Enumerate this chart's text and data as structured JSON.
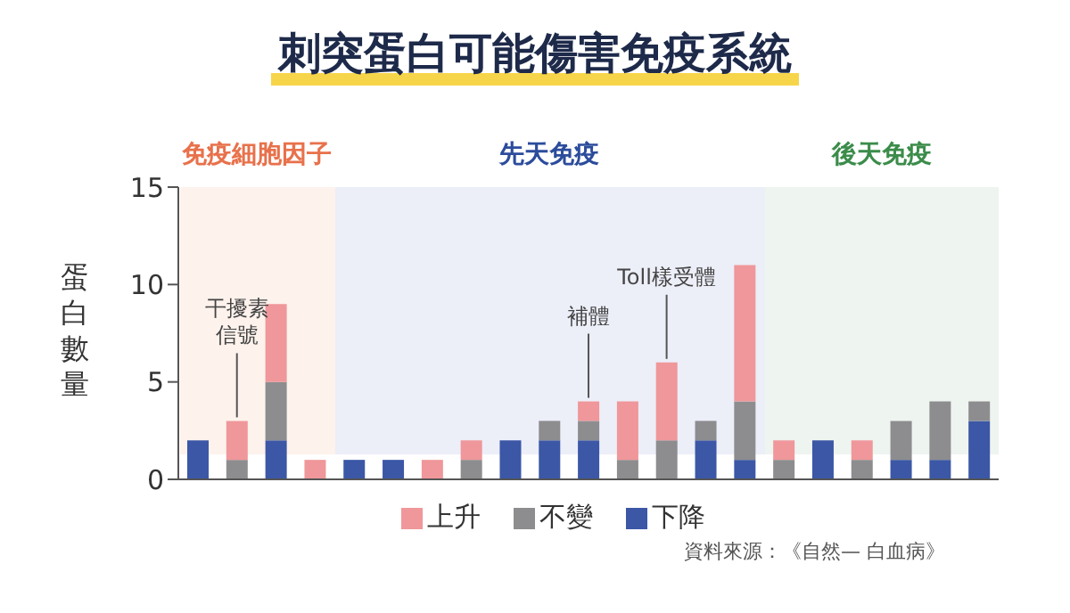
{
  "chart_data": {
    "type": "bar",
    "stacked": true,
    "title": "刺突蛋白可能傷害免疫系統",
    "ylabel": "蛋白數量",
    "categories": [
      null,
      null,
      null,
      null,
      null,
      null,
      null,
      null,
      null,
      null,
      null,
      null,
      null,
      null,
      null,
      null,
      null,
      null,
      null,
      null,
      null
    ],
    "series": [
      {
        "name": "下降",
        "color": "#3b57a6",
        "values": [
          2,
          0,
          2,
          0,
          1,
          1,
          0,
          0,
          2,
          2,
          2,
          0,
          0,
          2,
          1,
          0,
          2,
          0,
          1,
          1,
          3
        ]
      },
      {
        "name": "不變",
        "color": "#8d8d8f",
        "values": [
          0,
          1,
          3,
          0,
          0,
          0,
          0,
          1,
          0,
          1,
          1,
          1,
          2,
          1,
          3,
          1,
          0,
          1,
          2,
          3,
          1
        ]
      },
      {
        "name": "上升",
        "color": "#ef979a",
        "values": [
          0,
          2,
          4,
          1,
          0,
          0,
          1,
          1,
          0,
          0,
          1,
          3,
          4,
          0,
          7,
          1,
          0,
          1,
          0,
          0,
          0
        ]
      }
    ],
    "ylim": [
      0,
      15
    ],
    "yticks": [
      0,
      5,
      10,
      15
    ],
    "legend": "bottom",
    "annotations": [
      {
        "text": "干擾素信號",
        "y": 3
      },
      {
        "text": "補體",
        "y": 4
      },
      {
        "text": "Toll樣受體",
        "y": 6
      },
      "免疫細胞因子",
      "先天免疫",
      "後天免疫",
      "資料來源：《自然— 白血病》"
    ]
  }
}
